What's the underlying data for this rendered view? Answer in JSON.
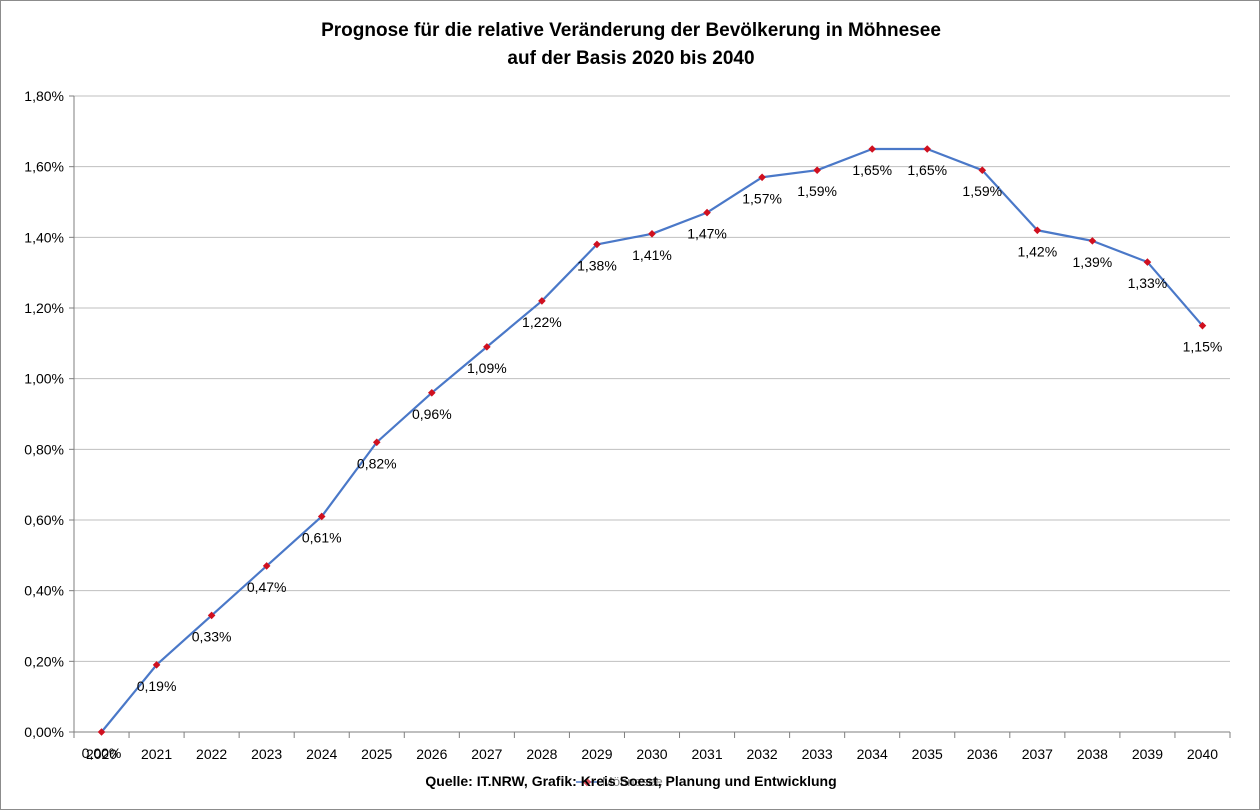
{
  "chart_data": {
    "type": "line",
    "title_lines": [
      "Prognose für die relative Veränderung der Bevölkerung in Möhnesee",
      "auf der Basis 2020 bis 2040"
    ],
    "categories": [
      "2020",
      "2021",
      "2022",
      "2023",
      "2024",
      "2025",
      "2026",
      "2027",
      "2028",
      "2029",
      "2030",
      "2031",
      "2032",
      "2033",
      "2034",
      "2035",
      "2036",
      "2037",
      "2038",
      "2039",
      "2040"
    ],
    "series": [
      {
        "name": "Möhnesee",
        "values": [
          0.0,
          0.19,
          0.33,
          0.47,
          0.61,
          0.82,
          0.96,
          1.09,
          1.22,
          1.38,
          1.41,
          1.47,
          1.57,
          1.59,
          1.65,
          1.65,
          1.59,
          1.42,
          1.39,
          1.33,
          1.15
        ],
        "labels": [
          "0,00%",
          "0,19%",
          "0,33%",
          "0,47%",
          "0,61%",
          "0,82%",
          "0,96%",
          "1,09%",
          "1,22%",
          "1,38%",
          "1,41%",
          "1,47%",
          "1,57%",
          "1,59%",
          "1,65%",
          "1,65%",
          "1,59%",
          "1,42%",
          "1,39%",
          "1,33%",
          "1,15%"
        ],
        "line_color": "#4a78c8",
        "marker_color": "#d0101f",
        "marker": "diamond"
      }
    ],
    "y_ticks": [
      0,
      0.2,
      0.4,
      0.6,
      0.8,
      1.0,
      1.2,
      1.4,
      1.6,
      1.8
    ],
    "y_tick_labels": [
      "0,00%",
      "0,20%",
      "0,40%",
      "0,60%",
      "0,80%",
      "1,00%",
      "1,20%",
      "1,40%",
      "1,60%",
      "1,80%"
    ],
    "ylim": [
      0,
      1.8
    ],
    "grid": true,
    "gridline_color": "#bfbfbf",
    "legend_position": "bottom",
    "source_note": "Quelle: IT.NRW, Grafik: Kreis Soest, Planung und Entwicklung"
  }
}
